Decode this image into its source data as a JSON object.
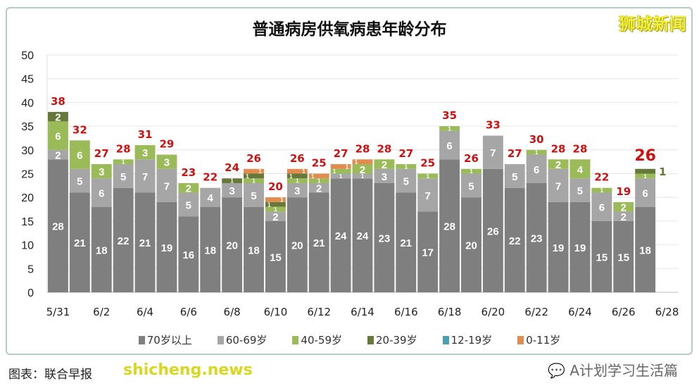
{
  "brand": "狮城新闻",
  "wechat_account": "A计划学习生活篇",
  "source": "图表：联合早报",
  "watermark": "shicheng.news",
  "colors": {
    "70+": "#7f7f7f",
    "60-69": "#a6a6a6",
    "40-59": "#9bbb59",
    "20-39": "#66793a",
    "12-19": "#4a9fb0",
    "0-11": "#e08d4f",
    "total_label": "#d01010"
  },
  "chart_data": {
    "type": "bar",
    "stacked": true,
    "title": "普通病房供氧病患年龄分布",
    "xlabel": "",
    "ylabel": "",
    "ylim": [
      0,
      50
    ],
    "yticks": [
      0,
      5,
      10,
      15,
      20,
      25,
      30,
      35,
      40,
      45,
      50
    ],
    "grid": true,
    "legend_position": "bottom",
    "categories": [
      "5/31",
      "6/1",
      "6/2",
      "6/3",
      "6/4",
      "6/5",
      "6/6",
      "6/7",
      "6/8",
      "6/9",
      "6/10",
      "6/11",
      "6/12",
      "6/13",
      "6/14",
      "6/15",
      "6/16",
      "6/17",
      "6/18",
      "6/19",
      "6/20",
      "6/21",
      "6/22",
      "6/23",
      "6/24",
      "6/25",
      "6/26",
      "6/27",
      "6/28"
    ],
    "xtick_labels": [
      "5/31",
      "6/2",
      "6/4",
      "6/6",
      "6/8",
      "6/10",
      "6/12",
      "6/14",
      "6/16",
      "6/18",
      "6/20",
      "6/22",
      "6/24",
      "6/26",
      "6/28"
    ],
    "series": [
      {
        "name": "70岁以上",
        "values": [
          28,
          21,
          18,
          22,
          21,
          19,
          16,
          18,
          20,
          18,
          15,
          20,
          21,
          24,
          24,
          23,
          21,
          17,
          28,
          20,
          26,
          22,
          23,
          19,
          19,
          15,
          15,
          18,
          null
        ]
      },
      {
        "name": "60-69岁",
        "values": [
          2,
          5,
          6,
          5,
          7,
          7,
          5,
          4,
          3,
          5,
          2,
          3,
          2,
          1,
          1,
          3,
          5,
          7,
          6,
          5,
          7,
          5,
          6,
          7,
          5,
          6,
          2,
          6,
          null
        ]
      },
      {
        "name": "40-59岁",
        "values": [
          6,
          6,
          3,
          1,
          3,
          3,
          2,
          0,
          0,
          1,
          1,
          1,
          1,
          1,
          2,
          2,
          1,
          1,
          1,
          1,
          0,
          0,
          1,
          2,
          4,
          1,
          2,
          1,
          null
        ]
      },
      {
        "name": "20-39岁",
        "values": [
          2,
          0,
          0,
          0,
          0,
          0,
          0,
          0,
          1,
          1,
          1,
          1,
          0,
          0,
          0,
          0,
          0,
          0,
          0,
          0,
          0,
          0,
          0,
          0,
          0,
          0,
          0,
          1,
          null
        ]
      },
      {
        "name": "12-19岁",
        "values": [
          0,
          0,
          0,
          0,
          0,
          0,
          0,
          0,
          0,
          0,
          0,
          0,
          0,
          0,
          0,
          0,
          0,
          0,
          0,
          0,
          0,
          0,
          0,
          0,
          0,
          0,
          0,
          0,
          null
        ]
      },
      {
        "name": "0-11岁",
        "values": [
          0,
          0,
          0,
          0,
          0,
          0,
          0,
          0,
          0,
          1,
          1,
          1,
          1,
          1,
          1,
          0,
          0,
          0,
          0,
          0,
          0,
          0,
          0,
          0,
          0,
          0,
          0,
          0,
          null
        ]
      }
    ],
    "totals": [
      38,
      32,
      27,
      28,
      31,
      29,
      23,
      22,
      24,
      26,
      20,
      26,
      25,
      27,
      28,
      28,
      27,
      25,
      35,
      26,
      33,
      27,
      30,
      28,
      28,
      22,
      19,
      26,
      null
    ]
  }
}
